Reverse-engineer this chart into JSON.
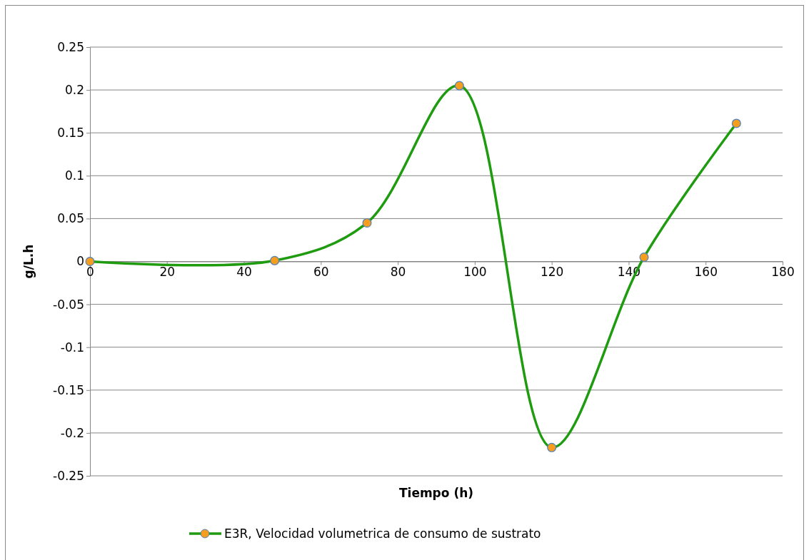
{
  "chart_data": {
    "type": "line",
    "xlabel": "Tiempo (h)",
    "ylabel": "g/L.h",
    "x": [
      0,
      48,
      72,
      96,
      120,
      144,
      168
    ],
    "series": [
      {
        "name": "E3R, Velocidad volumetrica de consumo de sustrato",
        "color": "#1f9b10",
        "values": [
          0,
          0.001,
          0.045,
          0.205,
          -0.217,
          0.005,
          0.161
        ]
      }
    ],
    "xlim": [
      0,
      180
    ],
    "xticks": [
      0,
      20,
      40,
      60,
      80,
      100,
      120,
      140,
      160,
      180
    ],
    "ylim": [
      -0.25,
      0.25
    ],
    "yticks": [
      -0.25,
      -0.2,
      -0.15,
      -0.1,
      -0.05,
      0,
      0.05,
      0.1,
      0.15,
      0.2,
      0.25
    ],
    "grid": "y",
    "legend": "bottom",
    "marker": "circle",
    "line_style": "solid"
  }
}
